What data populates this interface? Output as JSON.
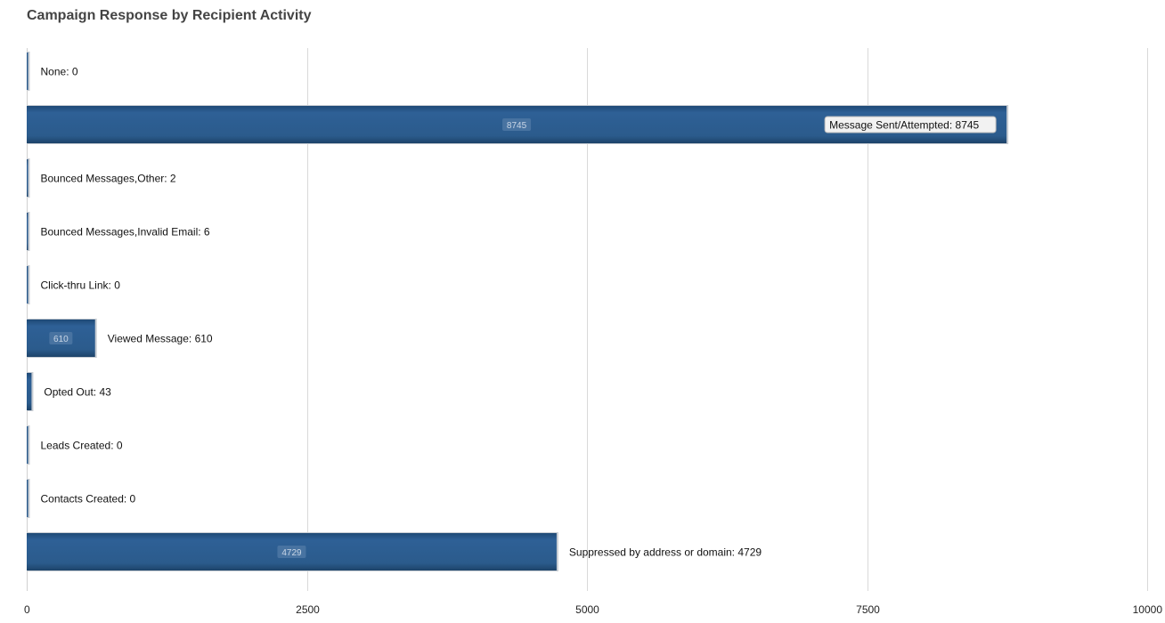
{
  "chart_data": {
    "type": "bar",
    "orientation": "horizontal",
    "title": "Campaign Response by Recipient Activity",
    "categories": [
      "None",
      "Message Sent/Attempted",
      "Bounced Messages,Other",
      "Bounced Messages,Invalid Email",
      "Click-thru Link",
      "Viewed Message",
      "Opted Out",
      "Leads Created",
      "Contacts Created",
      "Suppressed by address or domain"
    ],
    "values": [
      0,
      8745,
      2,
      6,
      0,
      610,
      43,
      0,
      0,
      4729
    ],
    "xlim": [
      0,
      10000
    ],
    "xticks": [
      0,
      2500,
      5000,
      7500,
      10000
    ],
    "grid": true,
    "bar_color": "#2b5b8c",
    "highlighted_label_index": 1
  }
}
